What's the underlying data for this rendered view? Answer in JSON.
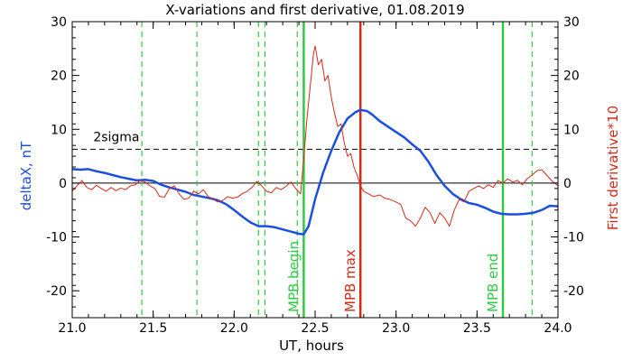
{
  "chart_data": {
    "type": "line",
    "title": "X-variations and first derivative, 01.08.2019",
    "xlabel": "UT, hours",
    "ylabel_left": "deltaX, nT",
    "ylabel_right": "First derivative*10",
    "xlim": [
      21.0,
      24.0
    ],
    "ylim": [
      -25,
      30
    ],
    "xticks": [
      "21.0",
      "21.5",
      "22.0",
      "22.5",
      "23.0",
      "23.5",
      "24.0"
    ],
    "yticks": [
      "-20",
      "-10",
      "0",
      "10",
      "20",
      "30"
    ],
    "series": [
      {
        "name": "deltaX",
        "color": "#1a4fe0",
        "points": [
          [
            21.0,
            2.6
          ],
          [
            21.05,
            2.5
          ],
          [
            21.1,
            2.6
          ],
          [
            21.15,
            2.2
          ],
          [
            21.2,
            1.9
          ],
          [
            21.25,
            1.5
          ],
          [
            21.3,
            1.1
          ],
          [
            21.35,
            0.8
          ],
          [
            21.4,
            0.5
          ],
          [
            21.45,
            0.6
          ],
          [
            21.5,
            0.4
          ],
          [
            21.55,
            -0.3
          ],
          [
            21.6,
            -0.8
          ],
          [
            21.65,
            -1.2
          ],
          [
            21.7,
            -1.6
          ],
          [
            21.75,
            -2.2
          ],
          [
            21.8,
            -2.5
          ],
          [
            21.85,
            -2.8
          ],
          [
            21.9,
            -3.2
          ],
          [
            21.95,
            -3.9
          ],
          [
            22.0,
            -5.0
          ],
          [
            22.05,
            -6.2
          ],
          [
            22.1,
            -7.3
          ],
          [
            22.15,
            -8.0
          ],
          [
            22.2,
            -8.0
          ],
          [
            22.25,
            -8.2
          ],
          [
            22.3,
            -8.6
          ],
          [
            22.35,
            -9.0
          ],
          [
            22.4,
            -9.4
          ],
          [
            22.43,
            -9.5
          ],
          [
            22.46,
            -8.0
          ],
          [
            22.5,
            -3.0
          ],
          [
            22.55,
            2.0
          ],
          [
            22.6,
            6.0
          ],
          [
            22.65,
            9.5
          ],
          [
            22.7,
            12.0
          ],
          [
            22.75,
            13.2
          ],
          [
            22.78,
            13.6
          ],
          [
            22.82,
            13.4
          ],
          [
            22.85,
            12.8
          ],
          [
            22.9,
            11.5
          ],
          [
            22.95,
            10.5
          ],
          [
            23.0,
            9.5
          ],
          [
            23.05,
            8.5
          ],
          [
            23.1,
            7.2
          ],
          [
            23.15,
            6.0
          ],
          [
            23.2,
            4.0
          ],
          [
            23.25,
            1.5
          ],
          [
            23.3,
            -0.5
          ],
          [
            23.35,
            -2.0
          ],
          [
            23.4,
            -3.0
          ],
          [
            23.45,
            -3.7
          ],
          [
            23.5,
            -4.0
          ],
          [
            23.55,
            -4.6
          ],
          [
            23.6,
            -5.3
          ],
          [
            23.65,
            -5.7
          ],
          [
            23.7,
            -5.8
          ],
          [
            23.75,
            -5.8
          ],
          [
            23.8,
            -5.7
          ],
          [
            23.85,
            -5.5
          ],
          [
            23.9,
            -5.0
          ],
          [
            23.95,
            -4.2
          ],
          [
            24.0,
            -4.3
          ]
        ]
      },
      {
        "name": "First derivative*10",
        "color": "#d42a1a",
        "points": [
          [
            21.0,
            -1.5
          ],
          [
            21.03,
            -0.5
          ],
          [
            21.06,
            0.5
          ],
          [
            21.09,
            -0.8
          ],
          [
            21.12,
            -1.2
          ],
          [
            21.15,
            -0.4
          ],
          [
            21.18,
            -1.0
          ],
          [
            21.21,
            -1.5
          ],
          [
            21.24,
            -0.8
          ],
          [
            21.27,
            -1.4
          ],
          [
            21.3,
            -0.9
          ],
          [
            21.33,
            -1.2
          ],
          [
            21.36,
            -0.5
          ],
          [
            21.39,
            -0.3
          ],
          [
            21.42,
            0.5
          ],
          [
            21.45,
            0.2
          ],
          [
            21.48,
            -0.5
          ],
          [
            21.51,
            -1.0
          ],
          [
            21.54,
            -2.5
          ],
          [
            21.57,
            -2.6
          ],
          [
            21.6,
            -1.0
          ],
          [
            21.63,
            -0.5
          ],
          [
            21.66,
            -2.0
          ],
          [
            21.69,
            -3.0
          ],
          [
            21.72,
            -2.8
          ],
          [
            21.75,
            -1.5
          ],
          [
            21.78,
            -2.0
          ],
          [
            21.81,
            -1.2
          ],
          [
            21.84,
            -2.5
          ],
          [
            21.87,
            -3.0
          ],
          [
            21.9,
            -3.5
          ],
          [
            21.93,
            -3.2
          ],
          [
            21.96,
            -2.5
          ],
          [
            21.99,
            -2.8
          ],
          [
            22.02,
            -2.6
          ],
          [
            22.05,
            -2.0
          ],
          [
            22.08,
            -1.5
          ],
          [
            22.11,
            -0.8
          ],
          [
            22.14,
            0.3
          ],
          [
            22.17,
            -0.5
          ],
          [
            22.2,
            -1.5
          ],
          [
            22.23,
            -1.8
          ],
          [
            22.26,
            -0.8
          ],
          [
            22.29,
            -1.2
          ],
          [
            22.32,
            -0.6
          ],
          [
            22.35,
            0.2
          ],
          [
            22.38,
            -1.0
          ],
          [
            22.41,
            -2.0
          ],
          [
            22.43,
            4.5
          ],
          [
            22.45,
            12.0
          ],
          [
            22.47,
            18.0
          ],
          [
            22.49,
            24.0
          ],
          [
            22.5,
            25.5
          ],
          [
            22.52,
            22.0
          ],
          [
            22.54,
            23.0
          ],
          [
            22.56,
            19.0
          ],
          [
            22.58,
            20.0
          ],
          [
            22.6,
            16.0
          ],
          [
            22.62,
            13.0
          ],
          [
            22.64,
            10.5
          ],
          [
            22.66,
            11.0
          ],
          [
            22.68,
            7.5
          ],
          [
            22.7,
            5.0
          ],
          [
            22.72,
            5.5
          ],
          [
            22.74,
            3.0
          ],
          [
            22.76,
            1.5
          ],
          [
            22.78,
            -0.5
          ],
          [
            22.8,
            -1.5
          ],
          [
            22.83,
            -2.0
          ],
          [
            22.86,
            -2.5
          ],
          [
            22.9,
            -2.2
          ],
          [
            22.93,
            -2.8
          ],
          [
            22.96,
            -3.0
          ],
          [
            23.0,
            -3.5
          ],
          [
            23.03,
            -4.0
          ],
          [
            23.06,
            -6.5
          ],
          [
            23.09,
            -7.0
          ],
          [
            23.12,
            -8.0
          ],
          [
            23.15,
            -6.5
          ],
          [
            23.18,
            -4.5
          ],
          [
            23.21,
            -5.5
          ],
          [
            23.24,
            -7.5
          ],
          [
            23.27,
            -5.5
          ],
          [
            23.3,
            -6.5
          ],
          [
            23.33,
            -8.0
          ],
          [
            23.36,
            -5.0
          ],
          [
            23.39,
            -3.0
          ],
          [
            23.42,
            -3.5
          ],
          [
            23.45,
            -1.5
          ],
          [
            23.48,
            -1.0
          ],
          [
            23.51,
            -0.5
          ],
          [
            23.54,
            -1.0
          ],
          [
            23.57,
            -0.3
          ],
          [
            23.6,
            -0.8
          ],
          [
            23.63,
            0.5
          ],
          [
            23.66,
            0.0
          ],
          [
            23.69,
            0.8
          ],
          [
            23.72,
            0.2
          ],
          [
            23.75,
            0.5
          ],
          [
            23.78,
            -0.3
          ],
          [
            23.81,
            0.8
          ],
          [
            23.84,
            1.5
          ],
          [
            23.87,
            2.3
          ],
          [
            23.9,
            2.5
          ],
          [
            23.93,
            1.5
          ],
          [
            23.96,
            0.5
          ],
          [
            24.0,
            -0.5
          ]
        ]
      }
    ],
    "reference_lines": [
      {
        "label": "2sigma",
        "y": 6.3,
        "style": "dashed",
        "color": "#000000"
      },
      {
        "label": "",
        "y": 0,
        "style": "solid",
        "color": "#000000"
      }
    ],
    "event_lines": [
      {
        "x": 21.43,
        "style": "dashed",
        "color": "#2ecc40",
        "label": ""
      },
      {
        "x": 21.77,
        "style": "dashed",
        "color": "#2ecc40",
        "label": ""
      },
      {
        "x": 22.15,
        "style": "dashed",
        "color": "#2ecc40",
        "label": ""
      },
      {
        "x": 22.19,
        "style": "dashed",
        "color": "#2ecc40",
        "label": ""
      },
      {
        "x": 22.39,
        "style": "dashed",
        "color": "#2ecc40",
        "label": ""
      },
      {
        "x": 22.43,
        "style": "solid",
        "color": "#2ecc40",
        "label": "MPB begin"
      },
      {
        "x": 22.78,
        "style": "solid",
        "color": "#d42a1a",
        "label": "MPB max"
      },
      {
        "x": 23.66,
        "style": "solid",
        "color": "#2ecc40",
        "label": "MPB end"
      },
      {
        "x": 23.84,
        "style": "dashed",
        "color": "#2ecc40",
        "label": ""
      }
    ],
    "grid": false,
    "legend": "none"
  }
}
